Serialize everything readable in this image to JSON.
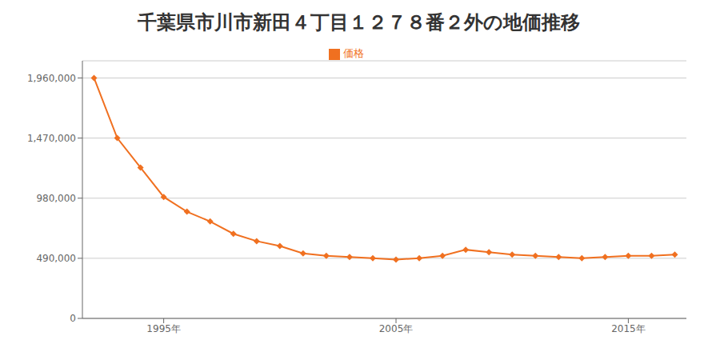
{
  "chart_data": {
    "type": "line",
    "title": "千葉県市川市新田４丁目１２７８番２外の地価推移",
    "x": [
      1992,
      1993,
      1994,
      1995,
      1996,
      1997,
      1998,
      1999,
      2000,
      2001,
      2002,
      2003,
      2004,
      2005,
      2006,
      2007,
      2008,
      2009,
      2010,
      2011,
      2012,
      2013,
      2014,
      2015,
      2016,
      2017
    ],
    "series": [
      {
        "name": "価格",
        "color": "#f07020",
        "marker": "diamond",
        "values": [
          1960000,
          1470000,
          1230000,
          990000,
          870000,
          790000,
          690000,
          630000,
          590000,
          530000,
          510000,
          500000,
          490000,
          480000,
          490000,
          510000,
          560000,
          540000,
          520000,
          510000,
          500000,
          490000,
          500000,
          510000,
          510000,
          520000
        ]
      }
    ],
    "xlim": [
      1991.5,
      2017.5
    ],
    "xticks": [
      {
        "value": 1995,
        "label": "1995年"
      },
      {
        "value": 2005,
        "label": "2005年"
      },
      {
        "value": 2015,
        "label": "2015年"
      }
    ],
    "ylim": [
      0,
      2100000
    ],
    "yticks": [
      0,
      {
        "value": 490000,
        "label": "490,000"
      },
      {
        "value": 980000,
        "label": "980,000"
      },
      {
        "value": 1470000,
        "label": "1,470,000"
      },
      {
        "value": 1960000,
        "label": "1,960,000"
      }
    ],
    "grid": true,
    "legend": "top"
  }
}
